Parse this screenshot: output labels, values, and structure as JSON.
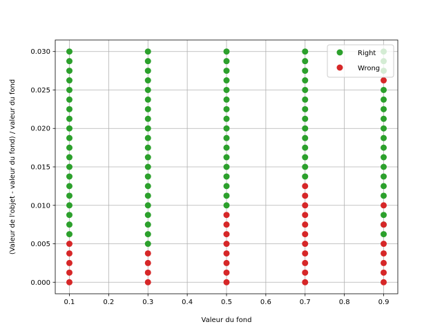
{
  "chart_data": {
    "type": "scatter",
    "xlabel": "Valeur du fond",
    "ylabel": "(Valeur de l'objet - valeur du fond) / valeur du fond",
    "xlim": [
      0.064,
      0.936
    ],
    "ylim": [
      -0.0015,
      0.0315
    ],
    "xticks": [
      "0.1",
      "0.2",
      "0.3",
      "0.4",
      "0.5",
      "0.6",
      "0.7",
      "0.8",
      "0.9"
    ],
    "yticks": [
      "0.000",
      "0.005",
      "0.010",
      "0.015",
      "0.020",
      "0.025",
      "0.030"
    ],
    "grid": true,
    "legend_position": "top-right",
    "x": [
      0.1,
      0.3,
      0.5,
      0.7,
      0.9
    ],
    "y_step": 0.00125,
    "y_count": 25,
    "series": [
      {
        "name": "Right",
        "color": "#2ca02c"
      },
      {
        "name": "Wrong",
        "color": "#d62728"
      }
    ],
    "points": [
      {
        "x": 0.1,
        "right_y": [
          0.00625,
          0.0075,
          0.00875,
          0.01,
          0.01125,
          0.0125,
          0.01375,
          0.015,
          0.01625,
          0.0175,
          0.01875,
          0.02,
          0.02125,
          0.0225,
          0.02375,
          0.025,
          0.02625,
          0.0275,
          0.02875,
          0.03
        ],
        "wrong_y": [
          0.0,
          0.00125,
          0.0025,
          0.00375,
          0.005
        ]
      },
      {
        "x": 0.3,
        "right_y": [
          0.005,
          0.00625,
          0.0075,
          0.00875,
          0.01,
          0.01125,
          0.0125,
          0.01375,
          0.015,
          0.01625,
          0.0175,
          0.01875,
          0.02,
          0.02125,
          0.0225,
          0.02375,
          0.025,
          0.02625,
          0.0275,
          0.02875,
          0.03
        ],
        "wrong_y": [
          0.0,
          0.00125,
          0.0025,
          0.00375
        ]
      },
      {
        "x": 0.5,
        "right_y": [
          0.01,
          0.01125,
          0.0125,
          0.01375,
          0.015,
          0.01625,
          0.0175,
          0.01875,
          0.02,
          0.02125,
          0.0225,
          0.02375,
          0.025,
          0.02625,
          0.0275,
          0.02875,
          0.03
        ],
        "wrong_y": [
          0.0,
          0.00125,
          0.0025,
          0.00375,
          0.005,
          0.00625,
          0.0075,
          0.00875
        ]
      },
      {
        "x": 0.7,
        "right_y": [
          0.01375,
          0.015,
          0.01625,
          0.0175,
          0.01875,
          0.02,
          0.02125,
          0.0225,
          0.02375,
          0.025,
          0.02625,
          0.0275,
          0.02875,
          0.03
        ],
        "wrong_y": [
          0.0,
          0.00125,
          0.0025,
          0.00375,
          0.005,
          0.00625,
          0.0075,
          0.00875,
          0.01,
          0.01125,
          0.0125
        ]
      },
      {
        "x": 0.9,
        "right_y": [
          0.00625,
          0.0075,
          0.00875,
          0.01125,
          0.0125,
          0.01375,
          0.015,
          0.01625,
          0.0175,
          0.01875,
          0.02,
          0.02125,
          0.0225,
          0.02375,
          0.025,
          0.0275,
          0.02875,
          0.03
        ],
        "wrong_y": [
          0.0,
          0.00125,
          0.0025,
          0.00375,
          0.005,
          0.0075,
          0.01,
          0.02625
        ]
      }
    ]
  }
}
